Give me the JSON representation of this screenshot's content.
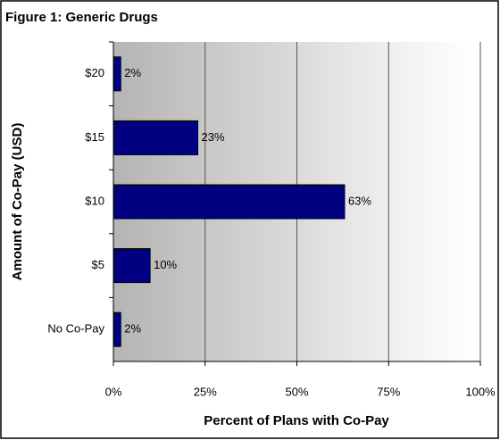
{
  "chart_data": {
    "type": "bar",
    "orientation": "horizontal",
    "title": "Figure 1: Generic Drugs",
    "x_label": "Percent of Plans with Co-Pay",
    "y_label": "Amount of Co-Pay (USD)",
    "categories": [
      "$20",
      "$15",
      "$10",
      "$5",
      "No Co-Pay"
    ],
    "values": [
      2,
      23,
      63,
      10,
      2
    ],
    "value_labels": [
      "2%",
      "23%",
      "63%",
      "10%",
      "2%"
    ],
    "color": "#000080",
    "xlim": [
      0,
      100
    ],
    "xticks": [
      {
        "value": 0,
        "label": "0%"
      },
      {
        "value": 25,
        "label": "25%"
      },
      {
        "value": 50,
        "label": "50%"
      },
      {
        "value": 75,
        "label": "75%"
      },
      {
        "value": 100,
        "label": "100%"
      }
    ],
    "grid": true
  }
}
